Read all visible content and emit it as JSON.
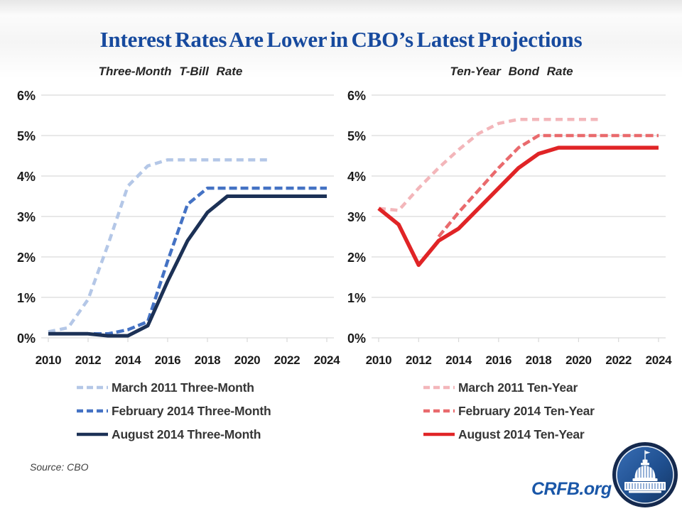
{
  "page": {
    "title": "Interest Rates Are Lower in CBO’s Latest Projections",
    "source_label": "Source: CBO",
    "brand": "CRFB.org",
    "logo_icon": "capitol-dome-in-circle"
  },
  "colors": {
    "title_blue": "#174a9e",
    "brand_blue": "#1a57a8",
    "gridline": "#d9d9d9",
    "axis_text": "#1a1a1a",
    "light_blue": "#b4c7e7",
    "medium_blue": "#4472c4",
    "navy": "#1c3156",
    "light_pink": "#f3b6ba",
    "medium_red": "#e96a6d",
    "red": "#e02426"
  },
  "chart_data": [
    {
      "type": "line",
      "title": "Three-Month T-Bill Rate",
      "xlim": [
        2010,
        2024
      ],
      "ylim": [
        0,
        6
      ],
      "xticks": [
        "2010",
        "2012",
        "2014",
        "2016",
        "2018",
        "2020",
        "2022",
        "2024"
      ],
      "yticks": [
        "0%",
        "1%",
        "2%",
        "3%",
        "4%",
        "5%",
        "6%"
      ],
      "grid": "horizontal",
      "legend_position": "below",
      "series": [
        {
          "name": "March 2011 Three-Month",
          "color": "#b4c7e7",
          "style": "dashed",
          "dash": "10 6.5",
          "width": 4.5,
          "x": [
            2010,
            2011,
            2012,
            2013,
            2014,
            2015,
            2016,
            2017,
            2018,
            2019,
            2020,
            2021
          ],
          "values": [
            0.15,
            0.25,
            0.95,
            2.3,
            3.75,
            4.25,
            4.4,
            4.4,
            4.4,
            4.4,
            4.4,
            4.4
          ]
        },
        {
          "name": "February 2014 Three-Month",
          "color": "#4472c4",
          "style": "dashed",
          "dash": "11 5",
          "width": 4.5,
          "x": [
            2010,
            2011,
            2012,
            2013,
            2014,
            2015,
            2016,
            2017,
            2018,
            2019,
            2020,
            2021,
            2022,
            2023,
            2024
          ],
          "values": [
            0.1,
            0.1,
            0.1,
            0.1,
            0.2,
            0.4,
            1.9,
            3.3,
            3.7,
            3.7,
            3.7,
            3.7,
            3.7,
            3.7,
            3.7
          ]
        },
        {
          "name": "August 2014 Three-Month",
          "color": "#1c3156",
          "style": "solid",
          "dash": "",
          "width": 5,
          "x": [
            2010,
            2011,
            2012,
            2013,
            2014,
            2015,
            2016,
            2017,
            2018,
            2019,
            2020,
            2021,
            2022,
            2023,
            2024
          ],
          "values": [
            0.1,
            0.1,
            0.1,
            0.05,
            0.05,
            0.3,
            1.4,
            2.4,
            3.1,
            3.5,
            3.5,
            3.5,
            3.5,
            3.5,
            3.5
          ]
        }
      ]
    },
    {
      "type": "line",
      "title": "Ten-Year Bond Rate",
      "xlim": [
        2010,
        2024
      ],
      "ylim": [
        0,
        6
      ],
      "xticks": [
        "2010",
        "2012",
        "2014",
        "2016",
        "2018",
        "2020",
        "2022",
        "2024"
      ],
      "yticks": [
        "0%",
        "1%",
        "2%",
        "3%",
        "4%",
        "5%",
        "6%"
      ],
      "grid": "horizontal",
      "legend_position": "below",
      "series": [
        {
          "name": "March 2011 Ten-Year",
          "color": "#f3b6ba",
          "style": "dashed",
          "dash": "10 6.5",
          "width": 4.5,
          "x": [
            2010,
            2011,
            2012,
            2013,
            2014,
            2015,
            2016,
            2017,
            2018,
            2019,
            2020,
            2021
          ],
          "values": [
            3.2,
            3.15,
            3.7,
            4.2,
            4.65,
            5.05,
            5.3,
            5.4,
            5.4,
            5.4,
            5.4,
            5.4
          ]
        },
        {
          "name": "February 2014 Ten-Year",
          "color": "#e96a6d",
          "style": "dashed",
          "dash": "11 5",
          "width": 4.5,
          "x": [
            2013,
            2014,
            2015,
            2016,
            2017,
            2018,
            2019,
            2020,
            2021,
            2022,
            2023,
            2024
          ],
          "values": [
            2.5,
            3.1,
            3.65,
            4.2,
            4.7,
            5.0,
            5.0,
            5.0,
            5.0,
            5.0,
            5.0,
            5.0
          ]
        },
        {
          "name": "August 2014 Ten-Year",
          "color": "#e02426",
          "style": "solid",
          "dash": "",
          "width": 5.5,
          "x": [
            2010,
            2011,
            2012,
            2013,
            2014,
            2015,
            2016,
            2017,
            2018,
            2019,
            2020,
            2021,
            2022,
            2023,
            2024
          ],
          "values": [
            3.2,
            2.8,
            1.8,
            2.4,
            2.7,
            3.2,
            3.7,
            4.2,
            4.55,
            4.7,
            4.7,
            4.7,
            4.7,
            4.7,
            4.7
          ]
        }
      ]
    }
  ]
}
